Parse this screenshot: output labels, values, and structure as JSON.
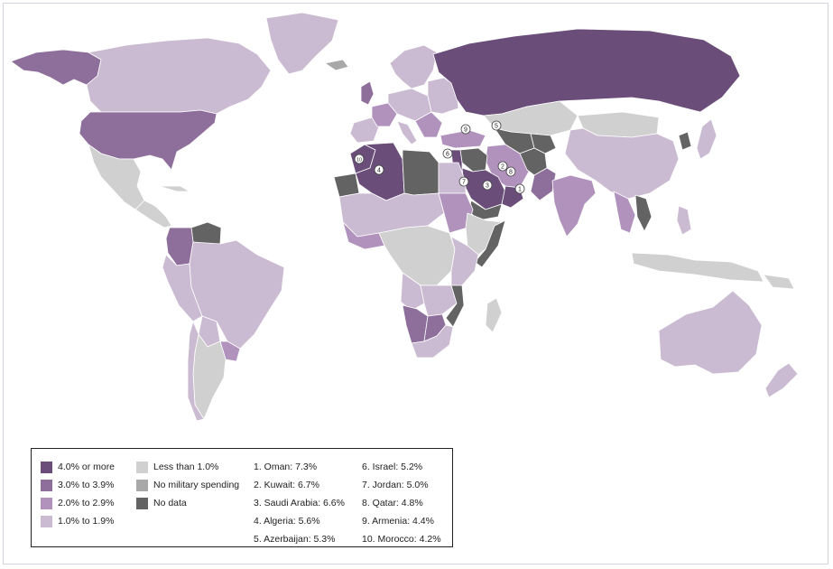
{
  "colors": {
    "ocean": "#ffffff",
    "border": "#ffffff",
    "cat_4_plus": "#6a4d79",
    "cat_3_to_3_9": "#8e6f9b",
    "cat_2_to_2_9": "#b192bd",
    "cat_1_to_1_9": "#cbbbd2",
    "cat_less_1": "#d0d0d0",
    "cat_none": "#a8a8a8",
    "cat_no_data": "#636363"
  },
  "legend": {
    "categories": [
      {
        "label": "4.0% or more",
        "color": "#6a4d79"
      },
      {
        "label": "3.0% to 3.9%",
        "color": "#8e6f9b"
      },
      {
        "label": "2.0% to 2.9%",
        "color": "#b192bd"
      },
      {
        "label": "1.0% to 1.9%",
        "color": "#cbbbd2"
      },
      {
        "label": "Less than 1.0%",
        "color": "#d0d0d0"
      },
      {
        "label": "No military spending",
        "color": "#a8a8a8"
      },
      {
        "label": "No data",
        "color": "#636363"
      }
    ],
    "rankings": [
      "1. Oman: 7.3%",
      "2. Kuwait: 6.7%",
      "3. Saudi Arabia: 6.6%",
      "4. Algeria: 5.6%",
      "5. Azerbaijan: 5.3%",
      "6. Israel: 5.2%",
      "7. Jordan: 5.0%",
      "8. Qatar: 4.8%",
      "9. Armenia: 4.4%",
      "10. Morocco: 4.2%"
    ]
  },
  "rank_markers": [
    "1",
    "2",
    "3",
    "4",
    "5",
    "6",
    "7",
    "8",
    "9",
    "10"
  ]
}
